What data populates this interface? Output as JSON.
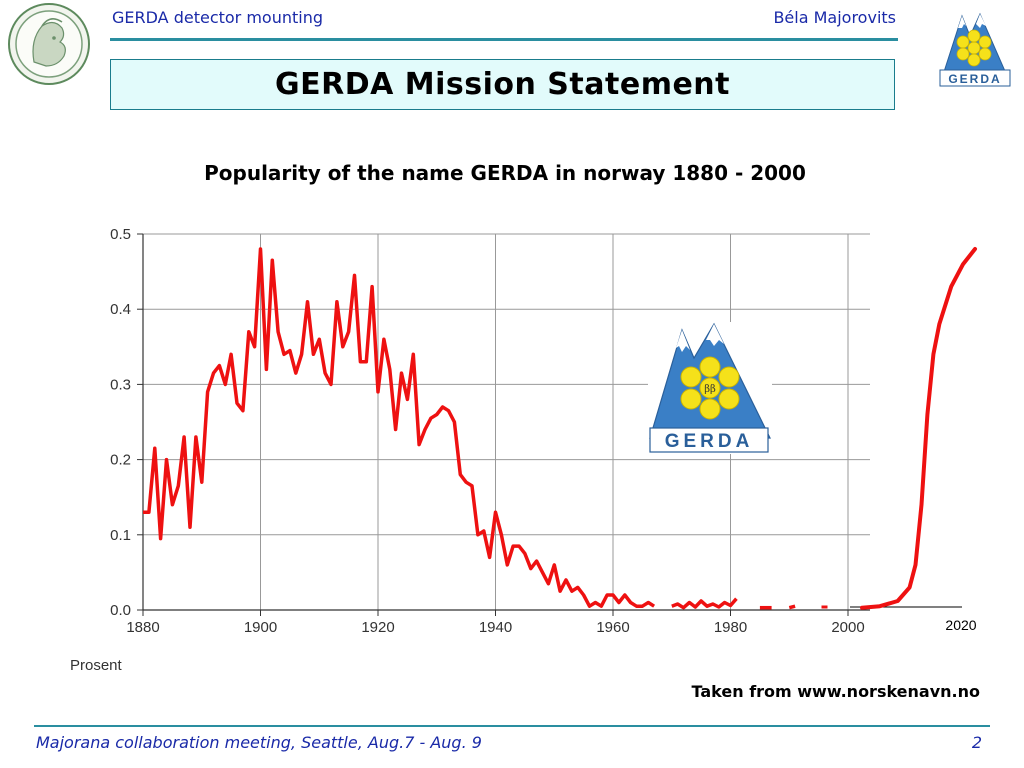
{
  "header": {
    "left": "GERDA detector mounting",
    "right": "Béla Majorovits"
  },
  "slide": {
    "title": "GERDA Mission Statement",
    "subtitle": "Popularity of the name GERDA in norway 1880 - 2000"
  },
  "credit": "Taken from www.norskenavn.no",
  "footer": {
    "left": "Majorana collaboration meeting, Seattle, Aug.7 - Aug. 9",
    "page": "2"
  },
  "logos": [
    {
      "name": "institute-seal",
      "icon": "athena-head-seal"
    },
    {
      "name": "gerda-logo",
      "icon": "mountain-triangle-with-flower",
      "text": "GERDA",
      "symbol": "ββ"
    }
  ],
  "colors": {
    "accent": "#1a2aa8",
    "rule": "#2a8ea0",
    "line": "#ee1111",
    "logo_blue": "#3a7fc6",
    "logo_yellow": "#f5e11a"
  },
  "chart_data": {
    "type": "line",
    "xlabel": "Prosent",
    "ylabel": "",
    "xlim": [
      1880,
      2000
    ],
    "ylim": [
      0,
      0.5
    ],
    "x_ticks": [
      "1880",
      "1900",
      "1920",
      "1940",
      "1960",
      "1980",
      "2000"
    ],
    "y_ticks": [
      "0.0",
      "0.1",
      "0.2",
      "0.3",
      "0.4",
      "0.5"
    ],
    "grid": true,
    "series": [
      {
        "color": "#ee1111",
        "x": [
          1880,
          1881,
          1882,
          1883,
          1884,
          1885,
          1886,
          1887,
          1888,
          1889,
          1890,
          1891,
          1892,
          1893,
          1894,
          1895,
          1896,
          1897,
          1898,
          1899,
          1900,
          1901,
          1902,
          1903,
          1904,
          1905,
          1906,
          1907,
          1908,
          1909,
          1910,
          1911,
          1912,
          1913,
          1914,
          1915,
          1916,
          1917,
          1918,
          1919,
          1920,
          1921,
          1922,
          1923,
          1924,
          1925,
          1926,
          1927,
          1928,
          1929,
          1930,
          1931,
          1932,
          1933,
          1934,
          1935,
          1936,
          1937,
          1938,
          1939,
          1940,
          1941,
          1942,
          1943,
          1944,
          1945,
          1946,
          1947,
          1948,
          1949,
          1950,
          1951,
          1952,
          1953,
          1954,
          1955,
          1956,
          1957,
          1958,
          1959,
          1960,
          1961,
          1962,
          1963,
          1964,
          1965,
          1966,
          1967
        ],
        "y": [
          0.13,
          0.13,
          0.215,
          0.095,
          0.2,
          0.14,
          0.165,
          0.23,
          0.11,
          0.23,
          0.17,
          0.29,
          0.315,
          0.325,
          0.3,
          0.34,
          0.275,
          0.265,
          0.37,
          0.35,
          0.48,
          0.32,
          0.465,
          0.37,
          0.34,
          0.345,
          0.315,
          0.34,
          0.41,
          0.34,
          0.36,
          0.315,
          0.3,
          0.41,
          0.35,
          0.37,
          0.445,
          0.33,
          0.33,
          0.43,
          0.29,
          0.36,
          0.32,
          0.24,
          0.315,
          0.28,
          0.34,
          0.22,
          0.24,
          0.255,
          0.26,
          0.27,
          0.265,
          0.25,
          0.18,
          0.17,
          0.165,
          0.1,
          0.105,
          0.07,
          0.13,
          0.1,
          0.06,
          0.085,
          0.085,
          0.075,
          0.055,
          0.065,
          0.05,
          0.035,
          0.06,
          0.025,
          0.04,
          0.025,
          0.03,
          0.02,
          0.005,
          0.01,
          0.005,
          0.02,
          0.02,
          0.01,
          0.02,
          0.01,
          0.005,
          0.005,
          0.01,
          0.005
        ]
      },
      {
        "color": "#ee1111",
        "x": [
          1970,
          1971,
          1972,
          1973,
          1974,
          1975,
          1976,
          1977,
          1978,
          1979,
          1980,
          1981
        ],
        "y": [
          0.005,
          0.008,
          0.003,
          0.01,
          0.004,
          0.012,
          0.005,
          0.008,
          0.004,
          0.01,
          0.006,
          0.015
        ]
      },
      {
        "color": "#ee1111",
        "x": [
          1985,
          1986,
          1987
        ],
        "y": [
          0.003,
          0.003,
          0.003
        ]
      },
      {
        "color": "#ee1111",
        "x": [
          1990,
          1991
        ],
        "y": [
          0.003,
          0.005
        ]
      },
      {
        "color": "#ee1111",
        "x": [
          1996
        ],
        "y": [
          0.004
        ]
      }
    ],
    "extrapolation": {
      "label": "2020",
      "color": "#ee1111",
      "x": [
        2003,
        2006,
        2009,
        2011,
        2012,
        2013,
        2014,
        2015,
        2016,
        2018,
        2020,
        2022
      ],
      "y": [
        0.003,
        0.005,
        0.012,
        0.03,
        0.06,
        0.14,
        0.26,
        0.34,
        0.38,
        0.43,
        0.46,
        0.48
      ]
    }
  }
}
